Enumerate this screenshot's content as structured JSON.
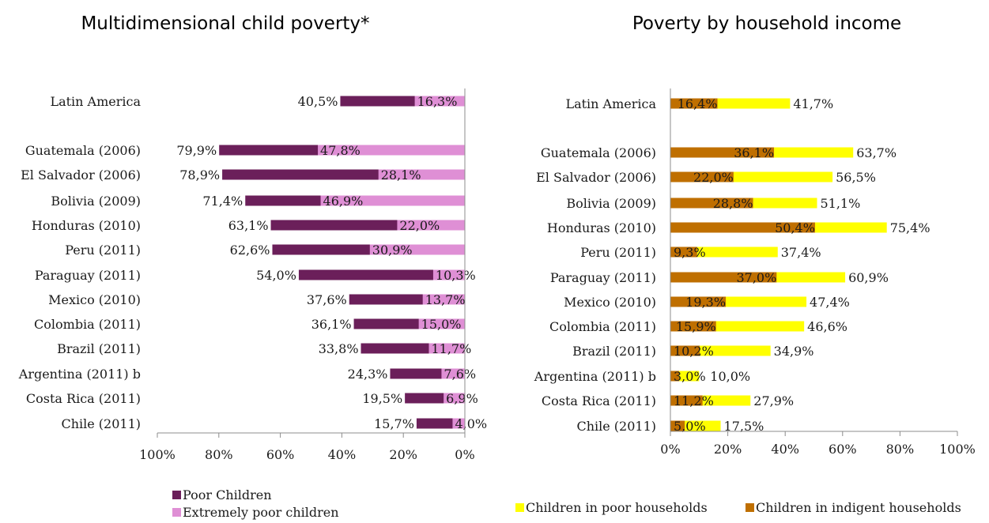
{
  "chart_data": [
    {
      "type": "bar",
      "orientation": "horizontal",
      "x_direction": "reversed",
      "title": "Multidimensional child poverty*",
      "categories": [
        "Latin America",
        "Guatemala (2006)",
        "El Salvador (2006)",
        "Bolivia  (2009)",
        "Honduras (2010)",
        "Peru (2011)",
        "Paraguay (2011)",
        "Mexico (2010)",
        "Colombia (2011)",
        "Brazil (2011)",
        "Argentina (2011) b",
        "Costa Rica (2011)",
        "Chile (2011)"
      ],
      "series": [
        {
          "name": "Poor Children",
          "color": "#6b1f5a",
          "values": [
            40.5,
            79.9,
            78.9,
            71.4,
            63.1,
            62.6,
            54.0,
            37.6,
            36.1,
            33.8,
            24.3,
            19.5,
            15.7
          ],
          "labels": [
            "40,5%",
            "79,9%",
            "78,9%",
            "71,4%",
            "63,1%",
            "62,6%",
            "54,0%",
            "37,6%",
            "36,1%",
            "33,8%",
            "24,3%",
            "19,5%",
            "15,7%"
          ]
        },
        {
          "name": "Extremely poor children",
          "color": "#df8fd5",
          "values": [
            16.3,
            47.8,
            28.1,
            46.9,
            22.0,
            30.9,
            10.3,
            13.7,
            15.0,
            11.7,
            7.6,
            6.9,
            4.0
          ],
          "labels": [
            "16,3%",
            "47,8%",
            "28,1%",
            "46,9%",
            "22,0%",
            "30,9%",
            "10,3%",
            "13,7%",
            "15,0%",
            "11,7%",
            "7,6%",
            "6,9%",
            "4,0%"
          ]
        }
      ],
      "xlim": [
        0,
        100
      ],
      "xticks": [
        "100%",
        "80%",
        "60%",
        "40%",
        "20%",
        "0%"
      ],
      "legend": [
        "Poor Children",
        "Extremely poor children"
      ],
      "legend_position": "bottom"
    },
    {
      "type": "bar",
      "orientation": "horizontal",
      "title": "Poverty by household income",
      "categories": [
        "Latin America",
        "Guatemala (2006)",
        "El Salvador (2006)",
        "Bolivia  (2009)",
        "Honduras (2010)",
        "Peru (2011)",
        "Paraguay (2011)",
        "Mexico (2010)",
        "Colombia (2011)",
        "Brazil (2011)",
        "Argentina (2011) b",
        "Costa Rica (2011)",
        "Chile (2011)"
      ],
      "series": [
        {
          "name": "Children in poor households",
          "color": "#ffff00",
          "values": [
            41.7,
            63.7,
            56.5,
            51.1,
            75.4,
            37.4,
            60.9,
            47.4,
            46.6,
            34.9,
            10.0,
            27.9,
            17.5
          ],
          "labels": [
            "41,7%",
            "63,7%",
            "56,5%",
            "51,1%",
            "75,4%",
            "37,4%",
            "60,9%",
            "47,4%",
            "46,6%",
            "34,9%",
            "10,0%",
            "27,9%",
            "17,5%"
          ]
        },
        {
          "name": "Children in indigent households",
          "color": "#bf6f00",
          "values": [
            16.4,
            36.1,
            22.0,
            28.8,
            50.4,
            9.3,
            37.0,
            19.3,
            15.9,
            10.2,
            3.0,
            11.2,
            5.0
          ],
          "labels": [
            "16,4%",
            "36,1%",
            "22,0%",
            "28,8%",
            "50,4%",
            "9,3%",
            "37,0%",
            "19,3%",
            "15,9%",
            "10,2%",
            "3,0%",
            "11,2%",
            "5,0%"
          ]
        }
      ],
      "xlim": [
        0,
        100
      ],
      "xticks": [
        "0%",
        "20%",
        "40%",
        "60%",
        "80%",
        "100%"
      ],
      "legend": [
        "Children in poor households",
        "Children in indigent households"
      ],
      "legend_position": "bottom"
    }
  ]
}
